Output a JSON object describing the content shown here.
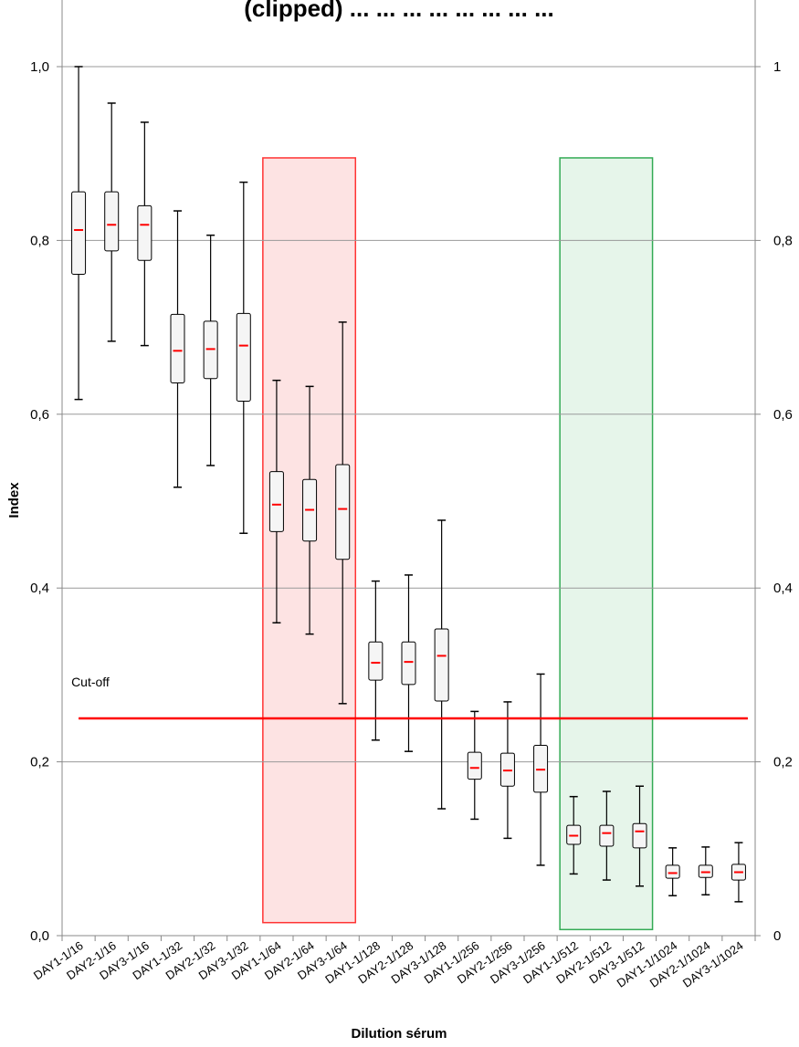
{
  "chart_data": {
    "type": "boxplot",
    "title": "(clipped) ... ... ... ... ... ... ... ...",
    "xlabel": "Dilution sérum",
    "ylabel": "Index",
    "ylim": [
      0,
      1.0
    ],
    "y_ticks_left": [
      "0,0",
      "0,2",
      "0,4",
      "0,6",
      "0,8",
      "1,0"
    ],
    "y_ticks_right": [
      "0",
      "0,2",
      "0,4",
      "0,6",
      "0,8",
      "1"
    ],
    "grid": "horizontal",
    "categories": [
      "DAY1-1/16",
      "DAY2-1/16",
      "DAY3-1/16",
      "DAY1-1/32",
      "DAY2-1/32",
      "DAY3-1/32",
      "DAY1-1/64",
      "DAY2-1/64",
      "DAY3-1/64",
      "DAY1-1/128",
      "DAY2-1/128",
      "DAY3-1/128",
      "DAY1-1/256",
      "DAY2-1/256",
      "DAY3-1/256",
      "DAY1-1/512",
      "DAY2-1/512",
      "DAY3-1/512",
      "DAY1-1/1024",
      "DAY2-1/1024",
      "DAY3-1/1024"
    ],
    "boxes": [
      {
        "min": 0.617,
        "q1": 0.761,
        "median": 0.812,
        "q3": 0.856,
        "max": 1.0
      },
      {
        "min": 0.684,
        "q1": 0.788,
        "median": 0.818,
        "q3": 0.856,
        "max": 0.958
      },
      {
        "min": 0.679,
        "q1": 0.777,
        "median": 0.818,
        "q3": 0.84,
        "max": 0.936
      },
      {
        "min": 0.516,
        "q1": 0.636,
        "median": 0.673,
        "q3": 0.715,
        "max": 0.834
      },
      {
        "min": 0.541,
        "q1": 0.641,
        "median": 0.675,
        "q3": 0.707,
        "max": 0.806
      },
      {
        "min": 0.463,
        "q1": 0.615,
        "median": 0.679,
        "q3": 0.716,
        "max": 0.867
      },
      {
        "min": 0.36,
        "q1": 0.465,
        "median": 0.496,
        "q3": 0.534,
        "max": 0.639
      },
      {
        "min": 0.347,
        "q1": 0.454,
        "median": 0.49,
        "q3": 0.525,
        "max": 0.632
      },
      {
        "min": 0.267,
        "q1": 0.433,
        "median": 0.491,
        "q3": 0.542,
        "max": 0.706
      },
      {
        "min": 0.225,
        "q1": 0.294,
        "median": 0.314,
        "q3": 0.338,
        "max": 0.408
      },
      {
        "min": 0.212,
        "q1": 0.289,
        "median": 0.315,
        "q3": 0.338,
        "max": 0.415
      },
      {
        "min": 0.146,
        "q1": 0.27,
        "median": 0.322,
        "q3": 0.353,
        "max": 0.478
      },
      {
        "min": 0.134,
        "q1": 0.18,
        "median": 0.193,
        "q3": 0.211,
        "max": 0.258
      },
      {
        "min": 0.112,
        "q1": 0.172,
        "median": 0.19,
        "q3": 0.21,
        "max": 0.269
      },
      {
        "min": 0.081,
        "q1": 0.165,
        "median": 0.191,
        "q3": 0.219,
        "max": 0.301
      },
      {
        "min": 0.071,
        "q1": 0.105,
        "median": 0.115,
        "q3": 0.127,
        "max": 0.16
      },
      {
        "min": 0.064,
        "q1": 0.103,
        "median": 0.118,
        "q3": 0.127,
        "max": 0.166
      },
      {
        "min": 0.057,
        "q1": 0.101,
        "median": 0.12,
        "q3": 0.129,
        "max": 0.172
      },
      {
        "min": 0.046,
        "q1": 0.066,
        "median": 0.072,
        "q3": 0.081,
        "max": 0.101
      },
      {
        "min": 0.047,
        "q1": 0.067,
        "median": 0.073,
        "q3": 0.081,
        "max": 0.102
      },
      {
        "min": 0.039,
        "q1": 0.064,
        "median": 0.073,
        "q3": 0.082,
        "max": 0.107
      }
    ],
    "cutoff": {
      "label": "Cut-off",
      "value": 0.25,
      "color": "#ff0000"
    },
    "highlight_regions": [
      {
        "from": "DAY1-1/64",
        "to": "DAY3-1/64",
        "y_range": [
          0.015,
          0.895
        ],
        "fill": "#fde3e3",
        "stroke": "#ff3333"
      },
      {
        "from": "DAY1-1/512",
        "to": "DAY3-1/512",
        "y_range": [
          0.007,
          0.895
        ],
        "fill": "#e6f5ea",
        "stroke": "#33aa55"
      }
    ],
    "colors": {
      "median": "#ff0000",
      "box_fill": "#f5f5f5",
      "box_stroke": "#000000",
      "grid": "#999999"
    }
  }
}
